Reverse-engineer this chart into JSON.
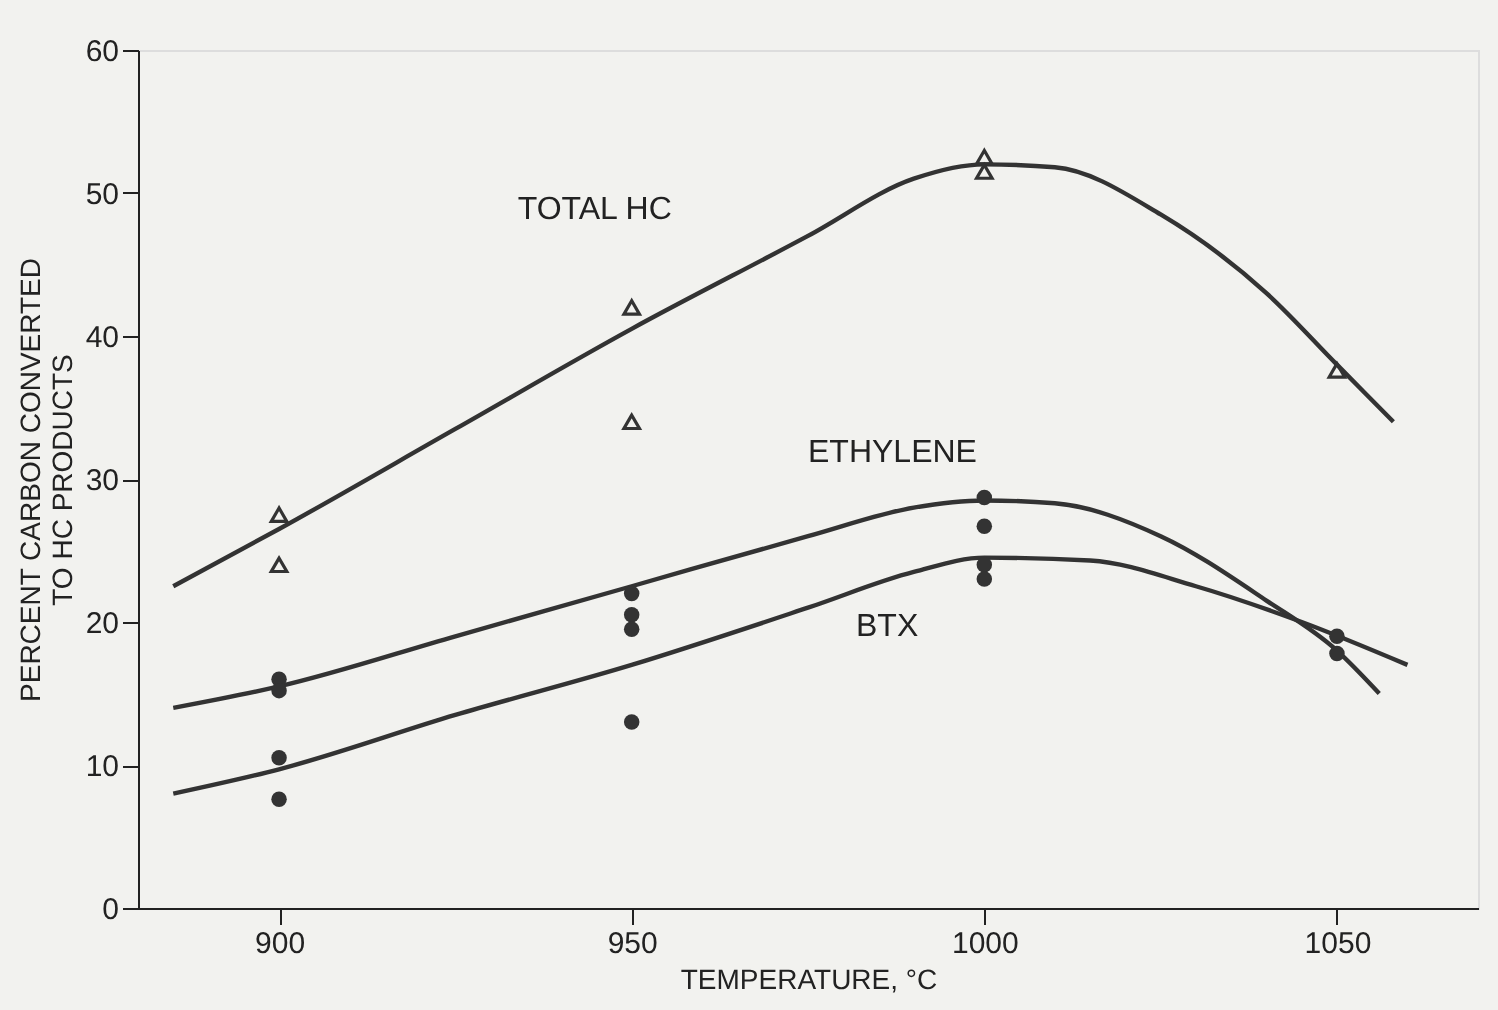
{
  "chart_data": {
    "type": "line",
    "xlabel": "TEMPERATURE, °C",
    "ylabel": "PERCENT CARBON CONVERTED\nTO HC PRODUCTS",
    "xlim": [
      880,
      1070
    ],
    "ylim": [
      0,
      60
    ],
    "xticks": [
      900,
      950,
      1000,
      1050
    ],
    "yticks": [
      0,
      10,
      20,
      30,
      40,
      50,
      60
    ],
    "grid": false,
    "line_style": "solid",
    "series": [
      {
        "name": "TOTAL HC",
        "color": "#333333",
        "x": [
          885,
          900,
          925,
          950,
          975,
          990,
          1000,
          1010,
          1025,
          1040,
          1050,
          1058
        ],
        "values": [
          22.5,
          26.5,
          33.5,
          40.5,
          47,
          51,
          52,
          51.8,
          48.5,
          43,
          38,
          34
        ]
      },
      {
        "name": "ETHYLENE",
        "color": "#333333",
        "x": [
          885,
          900,
          925,
          950,
          975,
          990,
          1000,
          1010,
          1025,
          1040,
          1050,
          1056
        ],
        "values": [
          14,
          15.5,
          19,
          22.5,
          26,
          28,
          28.5,
          28.3,
          26,
          21.5,
          18,
          15
        ]
      },
      {
        "name": "BTX",
        "color": "#333333",
        "x": [
          885,
          900,
          925,
          950,
          975,
          990,
          1000,
          1015,
          1030,
          1045,
          1060
        ],
        "values": [
          8,
          9.7,
          13.5,
          17,
          21,
          23.5,
          24.5,
          24.3,
          22.5,
          20,
          17
        ]
      },
      {
        "type": "scatter",
        "marker": "triangle",
        "color": "#333333",
        "x": [
          900,
          900,
          950,
          950,
          1000,
          1000,
          1050
        ],
        "values": [
          27.5,
          24,
          42,
          34,
          52.5,
          51.5,
          37.6
        ]
      },
      {
        "type": "scatter",
        "marker": "circle",
        "color": "#333333",
        "x": [
          900,
          900,
          950,
          950,
          1000,
          1000,
          1050
        ],
        "values": [
          16,
          15.2,
          22,
          20.5,
          28.7,
          26.7,
          17.8
        ]
      },
      {
        "type": "scatter",
        "marker": "circle",
        "color": "#333333",
        "x": [
          900,
          900,
          950,
          950,
          1000,
          1000,
          1050
        ],
        "values": [
          10.5,
          7.6,
          19.5,
          13,
          24,
          23,
          19
        ]
      }
    ]
  }
}
